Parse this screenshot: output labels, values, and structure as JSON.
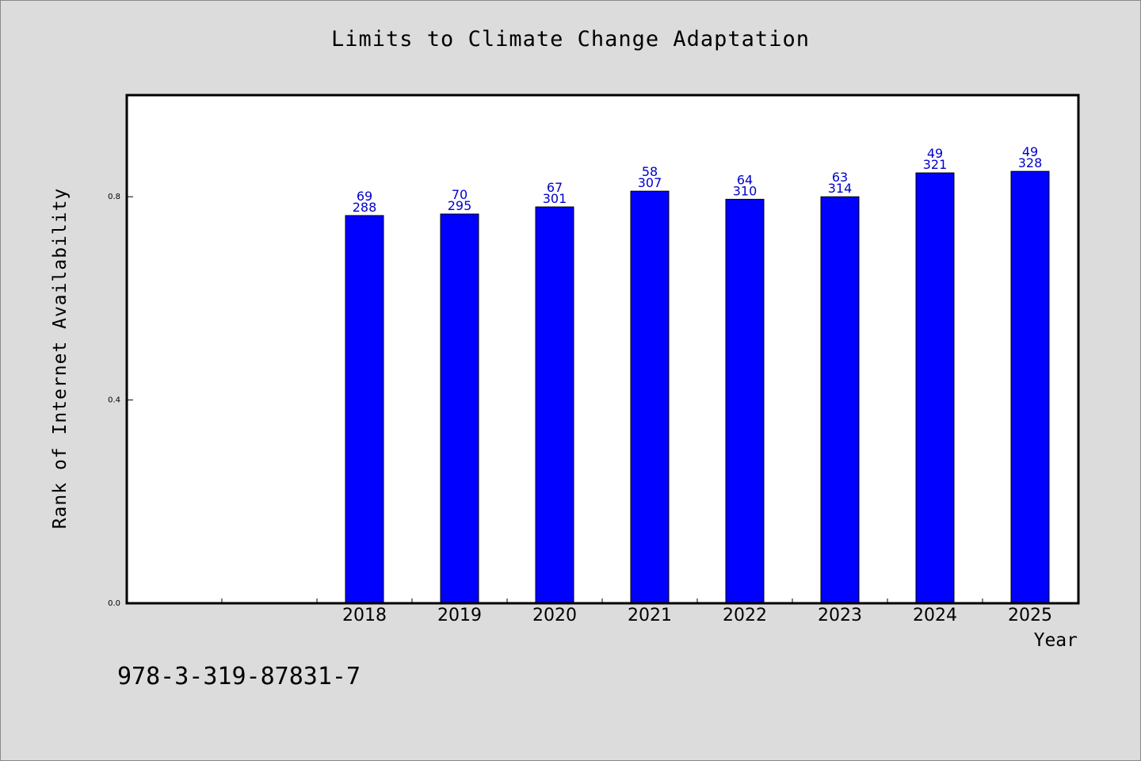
{
  "chart_data": {
    "type": "bar",
    "title": "Limits to Climate Change Adaptation",
    "xlabel": "Year",
    "ylabel": "Rank of Internet Availability",
    "categories": [
      "2018",
      "2019",
      "2020",
      "2021",
      "2022",
      "2023",
      "2024",
      "2025"
    ],
    "values": [
      0.763,
      0.766,
      0.78,
      0.811,
      0.795,
      0.8,
      0.847,
      0.85
    ],
    "label_top": [
      "69",
      "70",
      "67",
      "58",
      "64",
      "63",
      "49",
      "49"
    ],
    "label_bottom": [
      "288",
      "295",
      "301",
      "307",
      "310",
      "314",
      "321",
      "328"
    ],
    "y_ticks": [
      "0.0",
      "0.4",
      "0.8"
    ],
    "ylim": [
      0,
      1.0
    ],
    "grid": false,
    "bar_color": "#0000ff",
    "label_color": "#0000cc"
  },
  "footnote": "978-3-319-87831-7"
}
